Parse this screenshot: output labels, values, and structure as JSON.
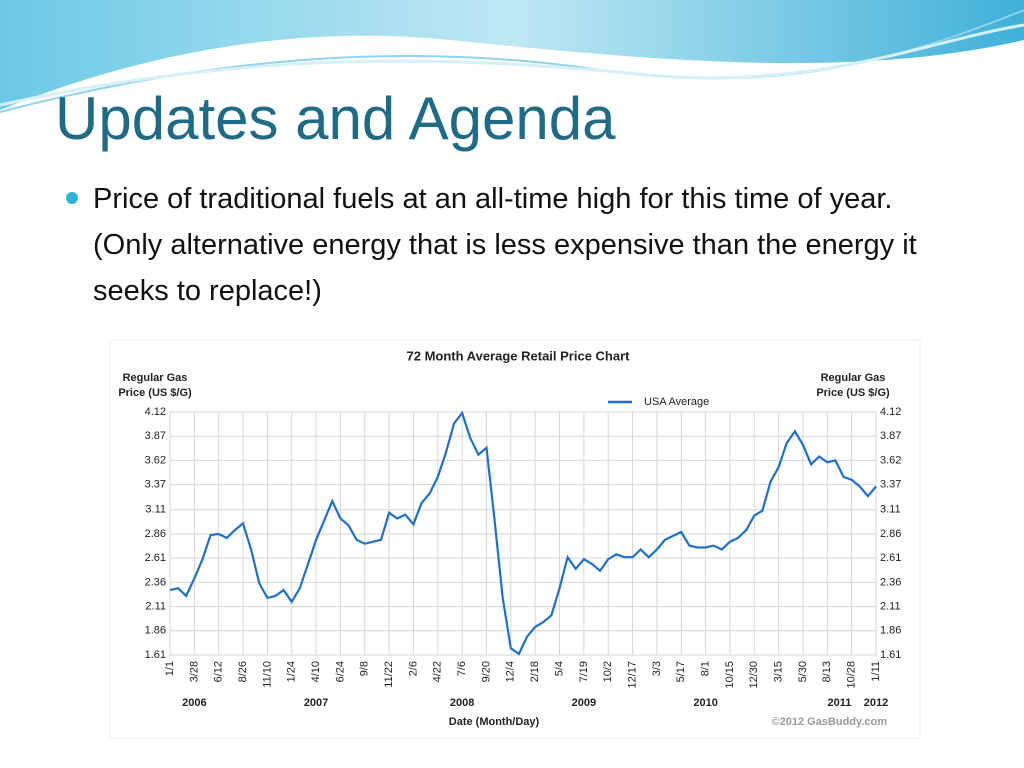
{
  "slide": {
    "title": "Updates and Agenda",
    "bullet": "Price of traditional fuels at an all-time high for this time of year.   (Only alternative energy that is less expensive than the energy it seeks to replace!)"
  },
  "chart_data": {
    "type": "line",
    "title": "72 Month Average Retail Price Chart",
    "ylabel": [
      "Regular Gas",
      "Price (US $/G)"
    ],
    "y2label": [
      "Regular Gas",
      "Price (US $/G)"
    ],
    "xlabel": "Date (Month/Day)",
    "credit": "©2012 GasBuddy.com",
    "year_labels": [
      "2006",
      "2007",
      "2008",
      "2009",
      "2010",
      "2011",
      "2012"
    ],
    "categories": [
      "1/1",
      null,
      null,
      "3/28",
      null,
      null,
      "6/12",
      null,
      null,
      "8/26",
      null,
      null,
      "11/10",
      null,
      null,
      "1/24",
      null,
      null,
      "4/10",
      null,
      null,
      "6/24",
      null,
      null,
      "9/8",
      null,
      null,
      "11/22",
      null,
      null,
      "2/6",
      null,
      null,
      "4/22",
      null,
      null,
      "7/6",
      null,
      null,
      "9/20",
      null,
      null,
      "12/4",
      null,
      null,
      "2/18",
      null,
      null,
      "5/4",
      null,
      null,
      "7/19",
      null,
      null,
      "10/2",
      null,
      null,
      "12/17",
      null,
      null,
      "3/3",
      null,
      null,
      "5/17",
      null,
      null,
      "8/1",
      null,
      null,
      "10/15",
      null,
      null,
      "12/30",
      null,
      null,
      "3/15",
      null,
      null,
      "5/30",
      null,
      null,
      "8/13",
      null,
      null,
      "10/28",
      null,
      null,
      "1/11"
    ],
    "series": [
      {
        "name": "USA Average",
        "color": "#1f6fd1",
        "values": [
          2.28,
          2.3,
          2.22,
          2.4,
          2.6,
          2.85,
          2.86,
          2.82,
          2.9,
          2.97,
          2.7,
          2.35,
          2.2,
          2.22,
          2.28,
          2.16,
          2.3,
          2.55,
          2.8,
          3.0,
          3.2,
          3.02,
          2.95,
          2.8,
          2.76,
          2.78,
          2.8,
          3.08,
          3.02,
          3.06,
          2.96,
          3.18,
          3.28,
          3.45,
          3.7,
          4.0,
          4.11,
          3.85,
          3.68,
          3.75,
          3.0,
          2.2,
          1.68,
          1.62,
          1.8,
          1.9,
          1.95,
          2.02,
          2.3,
          2.62,
          2.5,
          2.6,
          2.55,
          2.48,
          2.6,
          2.65,
          2.62,
          2.62,
          2.7,
          2.62,
          2.7,
          2.8,
          2.84,
          2.88,
          2.74,
          2.72,
          2.72,
          2.74,
          2.7,
          2.78,
          2.82,
          2.9,
          3.05,
          3.1,
          3.4,
          3.55,
          3.8,
          3.92,
          3.78,
          3.58,
          3.66,
          3.6,
          3.62,
          3.45,
          3.42,
          3.35,
          3.25,
          3.35
        ]
      }
    ],
    "ylim": [
      1.61,
      4.12
    ],
    "yticks": [
      1.61,
      1.86,
      2.11,
      2.36,
      2.61,
      2.86,
      3.11,
      3.37,
      3.62,
      3.87,
      4.12
    ],
    "grid": true,
    "legend": "top-right"
  }
}
